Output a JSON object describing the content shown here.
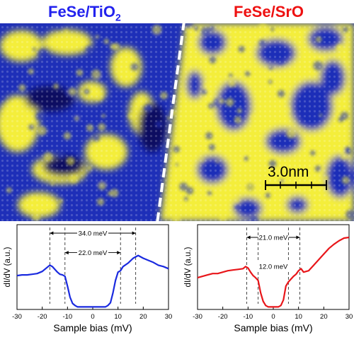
{
  "figure": {
    "title_left_main": "FeSe/TiO",
    "title_left_sub": "2",
    "title_right": "FeSe/SrO",
    "scalebar_label": "3.0nm",
    "colors": {
      "title_left": "#2222ee",
      "title_right": "#ee1111",
      "stm_yellow": "#f4ee3a",
      "stm_blue": "#1e2fb8",
      "stm_dark": "#0a1060",
      "curve_left": "#1a2adf",
      "curve_right": "#e8161a"
    }
  },
  "chart_data": [
    {
      "type": "line",
      "panel": "left",
      "xlabel": "Sample bias (mV)",
      "ylabel": "dI/dV (a.u.)",
      "xlim": [
        -30,
        30
      ],
      "xticks": [
        -30,
        -20,
        -10,
        0,
        10,
        20,
        30
      ],
      "annotations": [
        {
          "label": "34.0 meV",
          "from": -17,
          "to": 17,
          "level": 0.95
        },
        {
          "label": "22.0 meV",
          "from": -11,
          "to": 11,
          "level": 0.72
        }
      ],
      "x": [
        -30,
        -28,
        -26,
        -24,
        -22,
        -20,
        -18,
        -17,
        -16,
        -14,
        -13,
        -12,
        -11,
        -10,
        -9,
        -8,
        -7,
        -6,
        -5,
        -4,
        -3,
        -2,
        -1,
        0,
        1,
        2,
        3,
        4,
        5,
        6,
        7,
        8,
        9,
        10,
        11,
        12,
        14,
        16,
        18,
        20,
        22,
        24,
        26,
        28,
        30
      ],
      "y": [
        0.45,
        0.46,
        0.46,
        0.47,
        0.48,
        0.51,
        0.57,
        0.6,
        0.58,
        0.5,
        0.47,
        0.46,
        0.44,
        0.3,
        0.14,
        0.05,
        0.02,
        0.0,
        0.0,
        0.0,
        0.0,
        0.0,
        0.0,
        0.0,
        0.0,
        0.0,
        0.0,
        0.0,
        0.0,
        0.02,
        0.06,
        0.2,
        0.38,
        0.5,
        0.52,
        0.58,
        0.63,
        0.7,
        0.74,
        0.7,
        0.67,
        0.64,
        0.6,
        0.58,
        0.55
      ]
    },
    {
      "type": "line",
      "panel": "right",
      "xlabel": "Sample bias (mV)",
      "ylabel": "dI/dV (a.u.)",
      "xlim": [
        -30,
        30
      ],
      "xticks": [
        -30,
        -20,
        -10,
        0,
        10,
        20,
        30
      ],
      "annotations": [
        {
          "label": "21.0 meV",
          "from": -10.5,
          "to": 10.5,
          "level": 0.9
        },
        {
          "label": "12.0 meV",
          "from": -6,
          "to": 6,
          "level": 0.56
        }
      ],
      "x": [
        -30,
        -28,
        -26,
        -24,
        -22,
        -20,
        -18,
        -16,
        -14,
        -12,
        -11,
        -10,
        -9,
        -8,
        -7,
        -6,
        -5,
        -4,
        -3,
        -2,
        -1,
        0,
        1,
        2,
        3,
        4,
        5,
        6,
        7,
        8,
        9,
        10,
        11,
        12,
        14,
        16,
        18,
        20,
        22,
        24,
        26,
        28,
        30
      ],
      "y": [
        0.42,
        0.44,
        0.46,
        0.48,
        0.48,
        0.5,
        0.52,
        0.53,
        0.54,
        0.55,
        0.58,
        0.56,
        0.5,
        0.45,
        0.42,
        0.38,
        0.2,
        0.08,
        0.02,
        0.0,
        0.0,
        0.0,
        0.0,
        0.0,
        0.02,
        0.1,
        0.3,
        0.36,
        0.4,
        0.44,
        0.47,
        0.52,
        0.55,
        0.5,
        0.52,
        0.6,
        0.68,
        0.76,
        0.84,
        0.9,
        0.95,
        0.99,
        1.0
      ]
    }
  ]
}
